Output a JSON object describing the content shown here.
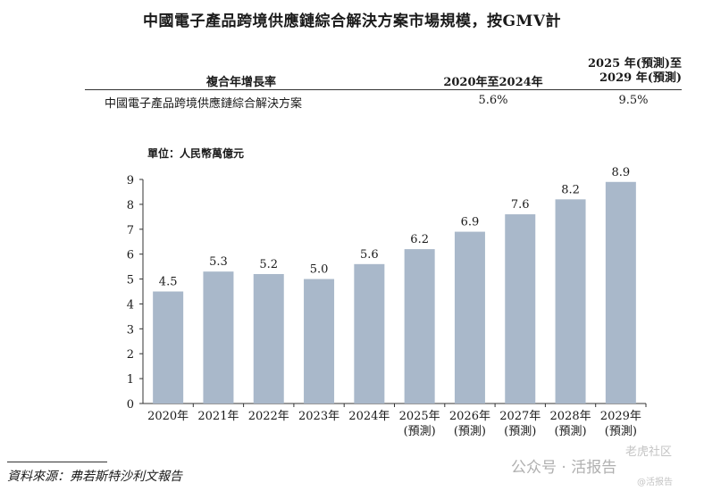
{
  "title": "中國電子產品跨境供應鏈綜合解決方案市場規模，按GMV計",
  "cagr_table": {
    "header_label": "複合年增長率",
    "col_a": "2020年至2024年",
    "col_b_line1": "2025 年(預測)至",
    "col_b_line2": "2029 年(預測)",
    "row_label": "中國電子產品跨境供應鏈綜合解決方案",
    "row_a": "5.6%",
    "row_b": "9.5%"
  },
  "unit_label": "單位：人民幣萬億元",
  "source": "資料來源：弗若斯特沙利文報告",
  "watermark": {
    "main": "公众号 · 活报告",
    "top": "老虎社区",
    "bottom": "@活报告"
  },
  "colors": {
    "bar": "#a9b8ca",
    "text": "#1a1a1a"
  },
  "chart_data": {
    "type": "bar",
    "title": "中國電子產品跨境供應鏈綜合解決方案市場規模，按GMV計",
    "ylabel": "單位：人民幣萬億元",
    "ylim": [
      0,
      9
    ],
    "yticks": [
      0,
      1,
      2,
      3,
      4,
      5,
      6,
      7,
      8,
      9
    ],
    "categories": [
      [
        "2020年"
      ],
      [
        "2021年"
      ],
      [
        "2022年"
      ],
      [
        "2023年"
      ],
      [
        "2024年"
      ],
      [
        "2025年",
        "(預測)"
      ],
      [
        "2026年",
        "(預測)"
      ],
      [
        "2027年",
        "(預測)"
      ],
      [
        "2028年",
        "(預測)"
      ],
      [
        "2029年",
        "(預測)"
      ]
    ],
    "values": [
      4.5,
      5.3,
      5.2,
      5.0,
      5.6,
      6.2,
      6.9,
      7.6,
      8.2,
      8.9
    ],
    "value_labels": [
      "4.5",
      "5.3",
      "5.2",
      "5.0",
      "5.6",
      "6.2",
      "6.9",
      "7.6",
      "8.2",
      "8.9"
    ],
    "grid": false,
    "legend": "none"
  }
}
